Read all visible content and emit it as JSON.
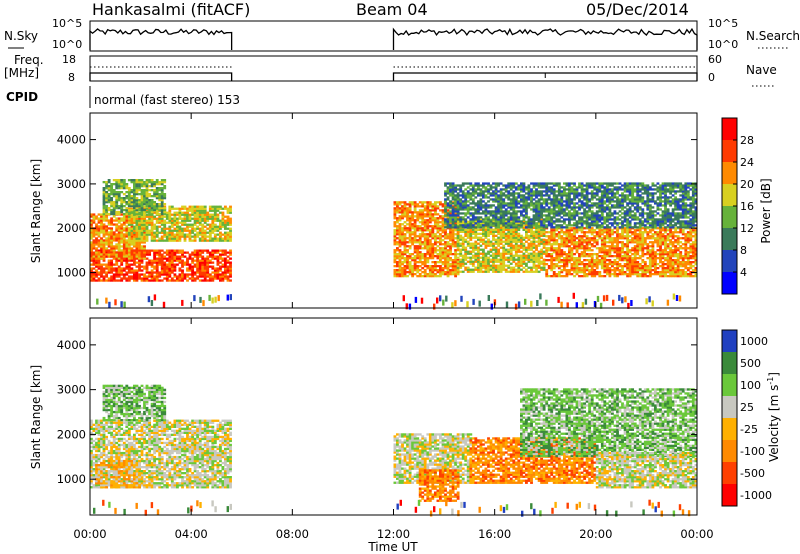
{
  "header": {
    "station": "Hankasalmi (fitACF)",
    "beam": "Beam 04",
    "date": "05/Dec/2014"
  },
  "labels": {
    "nsky": "N.Sky",
    "nsky_tick_top": "10^5",
    "nsky_tick_bottom": "10^0",
    "nsearch": "N.Search",
    "nsearch_tick_top": "10^5",
    "nsearch_tick_bottom": "10^0",
    "freq_line1": "Freq.",
    "freq_line2": "[MHz]",
    "freq_tick_top": "18",
    "freq_tick_bottom": "8",
    "nave": "Nave",
    "nave_tick_top": "60",
    "nave_tick_bottom": "0",
    "cpid": "CPID",
    "cpid_value": "normal (fast stereo) 153"
  },
  "colors": {
    "power": [
      "#0000ff",
      "#2244bb",
      "#3a7a5a",
      "#66b23a",
      "#d8d020",
      "#ff8a00",
      "#ff3a00",
      "#ff0000"
    ],
    "velocity": [
      "#ff0000",
      "#ff4000",
      "#ff8a00",
      "#ffb000",
      "#c8c8c0",
      "#6ac83a",
      "#3a8a3a",
      "#2040c0"
    ]
  },
  "chart_data": [
    {
      "type": "heatmap",
      "title": "",
      "xlabel": "",
      "ylabel": "Slant Range [km]",
      "x_unit": "hour UT",
      "xlim": [
        0,
        24
      ],
      "ylim": [
        200,
        4600
      ],
      "x_ticks": [
        "00:00",
        "04:00",
        "08:00",
        "12:00",
        "16:00",
        "20:00",
        "00:00"
      ],
      "y_ticks": [
        "1000",
        "2000",
        "3000",
        "4000"
      ],
      "y_tick_values": [
        1000,
        2000,
        3000,
        4000
      ],
      "colorbar": {
        "label": "Power [dB]",
        "ticks": [
          "4",
          "8",
          "12",
          "16",
          "20",
          "24",
          "28"
        ],
        "range": [
          0,
          32
        ]
      },
      "data_gap_hours": [
        5.6,
        12.0
      ],
      "regions": [
        {
          "t0": 0.0,
          "t1": 5.5,
          "r0": 800,
          "r1": 1500,
          "level": 6
        },
        {
          "t0": 0.0,
          "t1": 2.2,
          "r0": 1300,
          "r1": 2300,
          "level": 5
        },
        {
          "t0": 1.5,
          "t1": 5.5,
          "r0": 1700,
          "r1": 2500,
          "level": 4
        },
        {
          "t0": 0.5,
          "t1": 3.0,
          "r0": 2300,
          "r1": 3100,
          "level": 3
        },
        {
          "t0": 12.0,
          "t1": 14.5,
          "r0": 900,
          "r1": 2600,
          "level": 5
        },
        {
          "t0": 14.5,
          "t1": 18.0,
          "r0": 1000,
          "r1": 2200,
          "level": 4
        },
        {
          "t0": 18.0,
          "t1": 24.0,
          "r0": 900,
          "r1": 2000,
          "level": 5
        },
        {
          "t0": 14.0,
          "t1": 24.0,
          "r0": 2000,
          "r1": 3000,
          "level": 2
        }
      ]
    },
    {
      "type": "heatmap",
      "title": "",
      "xlabel": "Time UT",
      "ylabel": "Slant Range [km]",
      "x_unit": "hour UT",
      "xlim": [
        0,
        24
      ],
      "ylim": [
        200,
        4600
      ],
      "x_ticks": [
        "00:00",
        "04:00",
        "08:00",
        "12:00",
        "16:00",
        "20:00",
        "00:00"
      ],
      "y_ticks": [
        "1000",
        "2000",
        "3000",
        "4000"
      ],
      "y_tick_values": [
        1000,
        2000,
        3000,
        4000
      ],
      "colorbar": {
        "label": "Velocity [m s^-1]",
        "ticks": [
          "-1000",
          "-500",
          "-100",
          "-25",
          "25",
          "100",
          "500",
          "1000"
        ],
        "range": [
          -1000,
          1000
        ]
      },
      "data_gap_hours": [
        5.6,
        12.0
      ],
      "regions": [
        {
          "t0": 0.0,
          "t1": 5.5,
          "r0": 800,
          "r1": 2300,
          "level": 4
        },
        {
          "t0": 0.2,
          "t1": 2.0,
          "r0": 800,
          "r1": 1400,
          "level": 3
        },
        {
          "t0": 0.5,
          "t1": 3.0,
          "r0": 2300,
          "r1": 3100,
          "level": 5
        },
        {
          "t0": 12.0,
          "t1": 15.0,
          "r0": 900,
          "r1": 2000,
          "level": 4
        },
        {
          "t0": 13.0,
          "t1": 14.5,
          "r0": 500,
          "r1": 1200,
          "level": 2
        },
        {
          "t0": 15.0,
          "t1": 20.0,
          "r0": 900,
          "r1": 1900,
          "level": 2
        },
        {
          "t0": 17.0,
          "t1": 24.0,
          "r0": 1500,
          "r1": 3000,
          "level": 5
        },
        {
          "t0": 20.0,
          "t1": 24.0,
          "r0": 800,
          "r1": 1600,
          "level": 4
        }
      ]
    }
  ]
}
